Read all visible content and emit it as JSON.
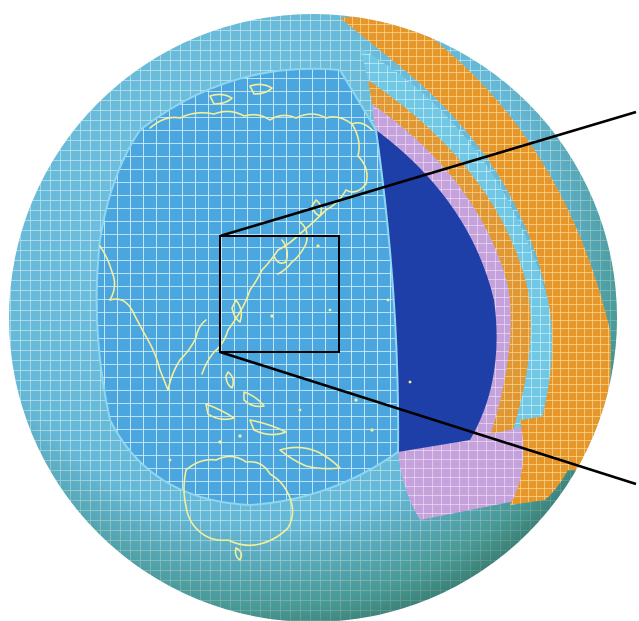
{
  "figure": {
    "colors": {
      "background": "#ffffff",
      "outer_grid_fill": "#6cc0e4",
      "outer_grid_line": "#bfe9f6",
      "outer_grid_shadow": "#2c7a54",
      "inner_grid_fill": "#4aa8e0",
      "inner_grid_line": "#d7f3fb",
      "core_cut": "#1e3fa8",
      "layer_violet": "#c9a9e0",
      "layer_cyan": "#74cbe6",
      "layer_orange": "#e08a1e",
      "coastline": "#f3ef9a",
      "callout_lines": "#000000"
    },
    "icons": [
      "globe-grid-illustration",
      "zoom-rectangle",
      "callout-line"
    ]
  }
}
